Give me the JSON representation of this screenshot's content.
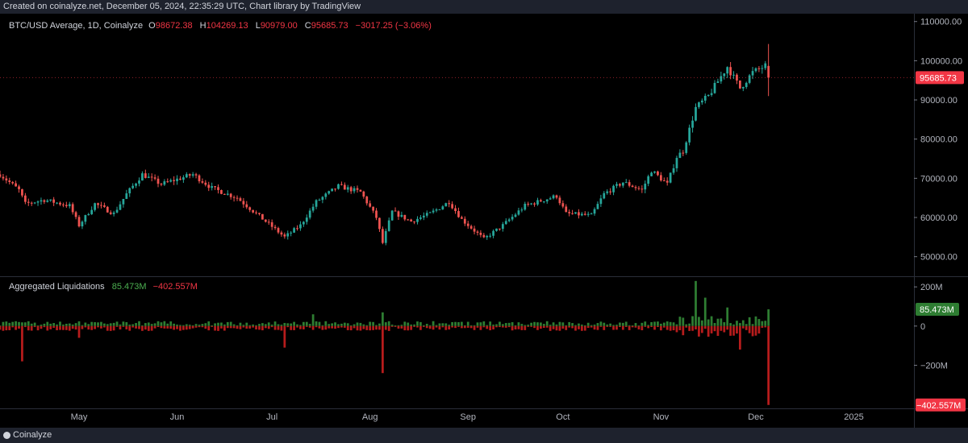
{
  "header": {
    "created_text": "Created on coinalyze.net, December 05, 2024, 22:35:29 UTC, Chart library by TradingView"
  },
  "footer": {
    "brand": "Coinalyze"
  },
  "colors": {
    "up": "#26a69a",
    "down": "#ef5350",
    "liq_pos": "#2e7d32",
    "liq_neg": "#b71c1c",
    "accent_red": "#f23645",
    "accent_green": "#4caf50",
    "bg": "#000000",
    "bar": "#1e222d"
  },
  "chart_data": [
    {
      "type": "candlestick",
      "title": "BTC/USD Average, 1D, Coinalyze",
      "ohlc_labels": {
        "o_key": "O",
        "o": "98672.38",
        "h_key": "H",
        "h": "104269.13",
        "l_key": "L",
        "l": "90979.00",
        "c_key": "C",
        "c": "95685.73",
        "change": "−3017.25 (−3.06%)"
      },
      "last_price_label": "95685.73",
      "y_ticks": [
        "110000.00",
        "100000.00",
        "90000.00",
        "80000.00",
        "70000.00",
        "60000.00",
        "50000.00"
      ],
      "y_tick_values": [
        110000,
        100000,
        90000,
        80000,
        70000,
        60000,
        50000
      ],
      "ylim": [
        45000,
        112000
      ],
      "x_ticks": [
        "May",
        "Jun",
        "Jul",
        "Aug",
        "Sep",
        "Oct",
        "Nov",
        "Dec",
        "2025"
      ],
      "x_tick_dates": [
        "2024-05-01",
        "2024-06-01",
        "2024-07-01",
        "2024-08-01",
        "2024-09-01",
        "2024-10-01",
        "2024-11-01",
        "2024-12-01",
        "2025-01-01"
      ],
      "x_range": [
        "2024-04-06",
        "2025-01-20"
      ],
      "close_path": [
        [
          "2024-04-06",
          71000
        ],
        [
          "2024-04-12",
          67000
        ],
        [
          "2024-04-14",
          63500
        ],
        [
          "2024-04-20",
          64500
        ],
        [
          "2024-04-28",
          63000
        ],
        [
          "2024-05-01",
          58000
        ],
        [
          "2024-05-06",
          63500
        ],
        [
          "2024-05-12",
          61000
        ],
        [
          "2024-05-16",
          66000
        ],
        [
          "2024-05-21",
          71000
        ],
        [
          "2024-05-27",
          68500
        ],
        [
          "2024-06-06",
          71000
        ],
        [
          "2024-06-12",
          67500
        ],
        [
          "2024-06-20",
          65000
        ],
        [
          "2024-06-26",
          61000
        ],
        [
          "2024-07-05",
          55000
        ],
        [
          "2024-07-10",
          58000
        ],
        [
          "2024-07-15",
          64000
        ],
        [
          "2024-07-22",
          68000
        ],
        [
          "2024-07-29",
          66500
        ],
        [
          "2024-08-03",
          60000
        ],
        [
          "2024-08-05",
          53500
        ],
        [
          "2024-08-08",
          61500
        ],
        [
          "2024-08-14",
          59000
        ],
        [
          "2024-08-20",
          61000
        ],
        [
          "2024-08-26",
          64000
        ],
        [
          "2024-08-30",
          59500
        ],
        [
          "2024-09-06",
          54500
        ],
        [
          "2024-09-12",
          58000
        ],
        [
          "2024-09-19",
          63000
        ],
        [
          "2024-09-29",
          65500
        ],
        [
          "2024-10-02",
          61000
        ],
        [
          "2024-10-10",
          60500
        ],
        [
          "2024-10-14",
          66000
        ],
        [
          "2024-10-20",
          69000
        ],
        [
          "2024-10-26",
          67000
        ],
        [
          "2024-10-29",
          72000
        ],
        [
          "2024-11-03",
          68500
        ],
        [
          "2024-11-06",
          75500
        ],
        [
          "2024-11-08",
          77000
        ],
        [
          "2024-11-12",
          88000
        ],
        [
          "2024-11-16",
          91000
        ],
        [
          "2024-11-22",
          98500
        ],
        [
          "2024-11-26",
          93000
        ],
        [
          "2024-11-30",
          97000
        ],
        [
          "2024-12-04",
          98700
        ],
        [
          "2024-12-05",
          95686
        ]
      ],
      "last_candle": {
        "date": "2024-12-05",
        "open": 98672.38,
        "high": 104269.13,
        "low": 90979.0,
        "close": 95685.73
      }
    },
    {
      "type": "bar",
      "title": "Aggregated Liquidations",
      "pos_value_label": "85.473M",
      "neg_value_label": "−402.557M",
      "y_ticks": [
        "200M",
        "0",
        "−200M"
      ],
      "y_tick_values": [
        200,
        0,
        -200
      ],
      "ylim": [
        -420,
        250
      ],
      "last_bar": {
        "date": "2024-12-05",
        "long_liq_musd": 85.473,
        "short_liq_musd": -402.557
      },
      "notable_spikes": [
        {
          "date": "2024-04-13",
          "value": -180
        },
        {
          "date": "2024-05-01",
          "value": -60
        },
        {
          "date": "2024-07-05",
          "value": -110
        },
        {
          "date": "2024-08-05",
          "value": -240
        },
        {
          "date": "2024-08-05",
          "value": 70
        },
        {
          "date": "2024-07-14",
          "value": 60
        },
        {
          "date": "2024-11-12",
          "value": 230
        },
        {
          "date": "2024-11-15",
          "value": 145
        },
        {
          "date": "2024-11-22",
          "value": 95
        },
        {
          "date": "2024-11-26",
          "value": -120
        },
        {
          "date": "2024-12-05",
          "value": 85.473
        },
        {
          "date": "2024-12-05",
          "value": -402.557
        }
      ]
    }
  ]
}
